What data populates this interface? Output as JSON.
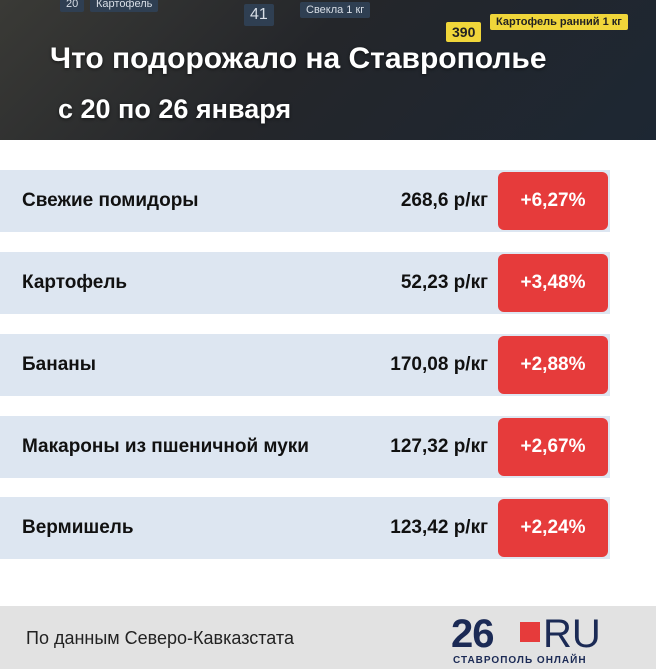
{
  "header": {
    "title": "Что подорожало на Ставрополье",
    "subtitle": "с 20 по 26 января",
    "photo_tags": [
      "20",
      "Картофель",
      "41",
      "Свекла 1 кг",
      "390",
      "Картофель ранний 1 кг"
    ]
  },
  "table": {
    "rows": [
      [
        "Свежие помидоры",
        "268,6 р/кг",
        "+6,27%"
      ],
      [
        "Картофель",
        "52,23 р/кг",
        "+3,48%"
      ],
      [
        "Бананы",
        "170,08 р/кг",
        "+2,88%"
      ],
      [
        "Макароны из пшеничной муки",
        "127,32 р/кг",
        "+2,67%"
      ],
      [
        "Вермишель",
        "123,42 р/кг",
        "+2,24%"
      ]
    ]
  },
  "footer": {
    "source": "По данным Северо-Кавказстата",
    "logo_number": "26",
    "logo_domain": "RU",
    "logo_caption": "СТАВРОПОЛЬ ОНЛАЙН"
  }
}
